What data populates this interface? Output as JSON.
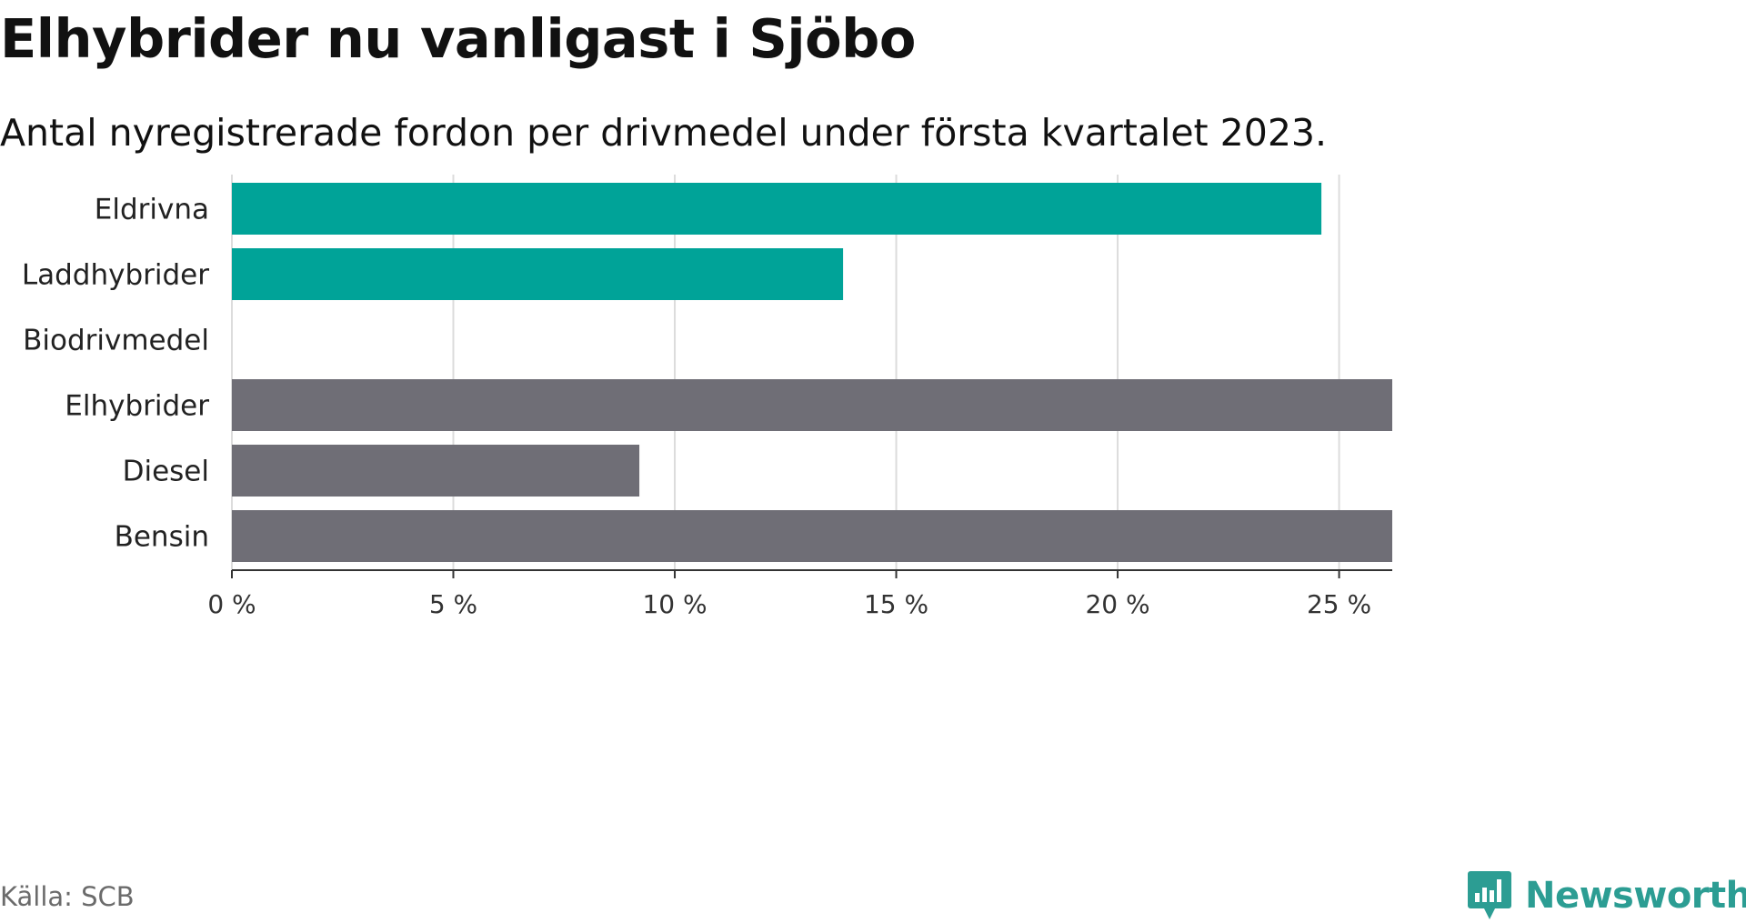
{
  "header": {
    "title": "Elhybrider nu vanligast i Sjöbo",
    "subtitle": "Antal nyregistrerade fordon per drivmedel under första kvartalet 2023."
  },
  "footer": {
    "source": "Källa: SCB",
    "brand": "Newsworthy"
  },
  "colors": {
    "highlight": "#00a398",
    "default": "#6f6e76",
    "grid": "#dcdcdc",
    "axis": "#333333",
    "brand": "#2c9d93"
  },
  "icons": {
    "brand_logo": "bar-chart-speech-bubble-icon"
  },
  "chart_data": {
    "type": "bar",
    "orientation": "horizontal",
    "title": "Elhybrider nu vanligast i Sjöbo",
    "subtitle": "Antal nyregistrerade fordon per drivmedel under första kvartalet 2023.",
    "categories": [
      "Eldrivna",
      "Laddhybrider",
      "Biodrivmedel",
      "Elhybrider",
      "Diesel",
      "Bensin"
    ],
    "values": [
      24.6,
      13.8,
      0,
      26.2,
      9.2,
      26.2
    ],
    "bar_colors": [
      "#00a398",
      "#00a398",
      "#00a398",
      "#6f6e76",
      "#6f6e76",
      "#6f6e76"
    ],
    "xlim": [
      0,
      26.2
    ],
    "x_ticks": [
      0,
      5,
      10,
      15,
      20,
      25
    ],
    "x_tick_labels": [
      "0 %",
      "5 %",
      "10 %",
      "15 %",
      "20 %",
      "25 %"
    ],
    "xlabel": "",
    "ylabel": "",
    "grid": true,
    "legend": "none"
  }
}
